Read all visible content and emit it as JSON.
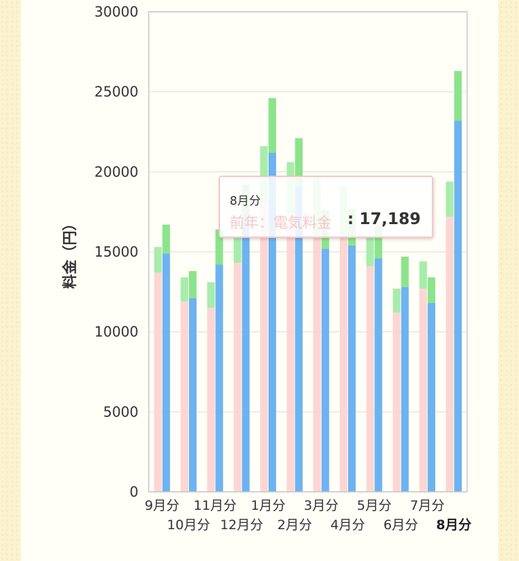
{
  "chart_data": {
    "type": "bar",
    "ylabel": "料金（円）",
    "ylim": [
      0,
      30000
    ],
    "yticks": [
      "0",
      "5000",
      "10000",
      "15000",
      "20000",
      "25000",
      "30000"
    ],
    "grid": true,
    "categories": [
      "9月分",
      "10月分",
      "11月分",
      "12月分",
      "1月分",
      "2月分",
      "3月分",
      "4月分",
      "5月分",
      "6月分",
      "7月分",
      "8月分"
    ],
    "selected_category": "8月分",
    "series": [
      {
        "name": "前年：電気料金",
        "color": "#fdd6d3",
        "stack": "previous",
        "values": [
          13700,
          11900,
          11500,
          14300,
          18100,
          17400,
          15900,
          16100,
          14100,
          11200,
          12700,
          17189
        ]
      },
      {
        "name": "",
        "color": "#a8ecab",
        "stack": "previous",
        "values": [
          1600,
          1500,
          1600,
          1700,
          3500,
          3200,
          3800,
          3000,
          1900,
          1500,
          1700,
          2200
        ]
      },
      {
        "name": "",
        "color": "#6db3f0",
        "stack": "current",
        "values": [
          14900,
          12100,
          14200,
          17200,
          21200,
          19100,
          15200,
          15400,
          14600,
          12800,
          11800,
          23200
        ]
      },
      {
        "name": "",
        "color": "#8be48c",
        "stack": "current",
        "values": [
          1800,
          1700,
          2200,
          2000,
          3400,
          3000,
          2400,
          2300,
          2000,
          1900,
          1600,
          3100
        ]
      }
    ],
    "tooltip": {
      "header": "8月分",
      "series": "前年：電気料金",
      "value": "17,189"
    }
  }
}
